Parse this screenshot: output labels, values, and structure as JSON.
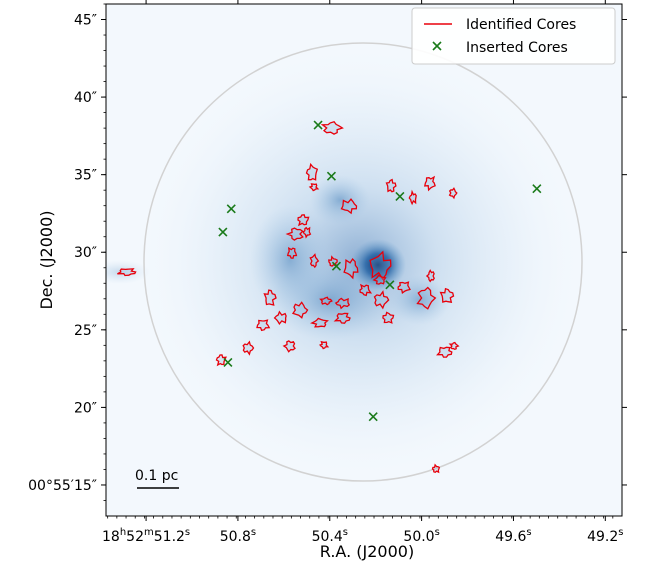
{
  "chart_data": {
    "type": "scatter",
    "title": "",
    "xlabel": "R.A. (J2000)",
    "ylabel": "Dec. (J2000)",
    "x_unit": "arcsec offset",
    "x_ticks": [
      {
        "label_main": "18",
        "label_sups": [
          "h",
          "52",
          "m",
          "51.2",
          "s"
        ],
        "x_value": -9.7
      },
      {
        "label_main": "50.8",
        "label_sups": [
          "s"
        ],
        "x_value": -4.2
      },
      {
        "label_main": "50.4",
        "label_sups": [
          "s"
        ],
        "x_value": 1.3
      },
      {
        "label_main": "50.0",
        "label_sups": [
          "s"
        ],
        "x_value": 6.8
      },
      {
        "label_main": "49.6",
        "label_sups": [
          "s"
        ],
        "x_value": 12.3
      },
      {
        "label_main": "49.2",
        "label_sups": [
          "s"
        ],
        "x_value": 17.8
      }
    ],
    "y_ticks": [
      {
        "label": "45″",
        "value": 45
      },
      {
        "label": "40″",
        "value": 40
      },
      {
        "label": "35″",
        "value": 35
      },
      {
        "label": "30″",
        "value": 30
      },
      {
        "label": "25″",
        "value": 25
      },
      {
        "label": "20″",
        "value": 20
      },
      {
        "label": "00°55′15″",
        "value": 15
      }
    ],
    "xlim": [
      -12.1,
      18.8
    ],
    "ylim": [
      13.0,
      46.0
    ],
    "scale_bar_label": "0.1 pc",
    "legend": {
      "placement": "top-right",
      "entries": [
        "Identified Cores",
        "Inserted Cores"
      ]
    },
    "series": [
      {
        "name": "Inserted Cores",
        "marker": "x",
        "color": "#1a7a1a",
        "points": [
          [
            0.6,
            38.2
          ],
          [
            1.4,
            34.9
          ],
          [
            5.5,
            33.6
          ],
          [
            13.7,
            34.1
          ],
          [
            -4.6,
            32.8
          ],
          [
            -5.1,
            31.3
          ],
          [
            1.7,
            29.1
          ],
          [
            4.9,
            27.9
          ],
          [
            -4.8,
            22.9
          ],
          [
            3.9,
            19.4
          ]
        ]
      }
    ],
    "identified_core_count": 40,
    "image_center": [
      3.3,
      29.5
    ],
    "bright_peak": [
      3.1,
      29.4
    ],
    "colors": {
      "core_contour": "#e8000b",
      "inserted_marker": "#1a7a1a",
      "intensity_cmap": "Blues",
      "field_circle": "#d2d2d2"
    }
  }
}
